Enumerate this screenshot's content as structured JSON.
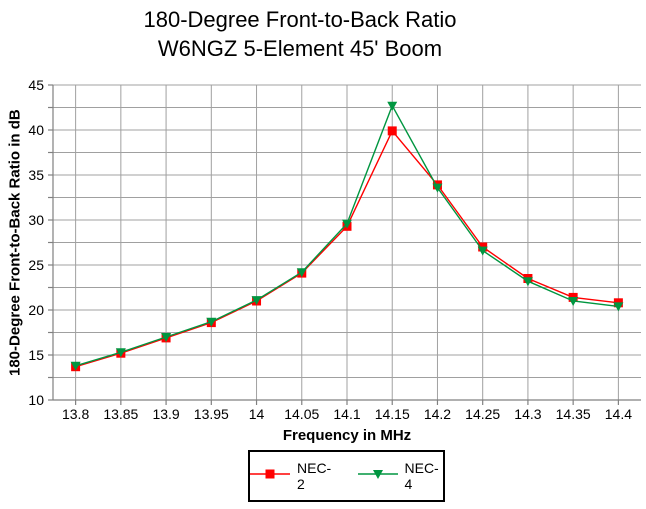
{
  "chart_data": {
    "type": "line",
    "title": "180-Degree Front-to-Back Ratio",
    "subtitle": "W6NGZ 5-Element 45' Boom",
    "xlabel": "Frequency in MHz",
    "ylabel": "180-Degree Front-to-Back Ratio in dB",
    "categories": [
      "13.8",
      "13.85",
      "13.9",
      "13.95",
      "14",
      "14.05",
      "14.1",
      "14.15",
      "14.2",
      "14.25",
      "14.3",
      "14.35",
      "14.4"
    ],
    "series": [
      {
        "name": "NEC-2",
        "marker": "square",
        "color": "#FF0000",
        "values": [
          13.7,
          15.2,
          16.9,
          18.6,
          21.0,
          24.1,
          29.3,
          39.9,
          33.9,
          27.0,
          23.5,
          21.4,
          20.8
        ]
      },
      {
        "name": "NEC-4",
        "marker": "triangle-down",
        "color": "#009640",
        "values": [
          13.8,
          15.3,
          17.0,
          18.7,
          21.1,
          24.2,
          29.6,
          42.7,
          33.6,
          26.6,
          23.2,
          21.0,
          20.4
        ]
      }
    ],
    "ylim": [
      10,
      45
    ],
    "ytick_step": 5,
    "ygrid_step": 2.5,
    "grid": true,
    "legend_position": "bottom-center",
    "colors": {
      "gridline": "#A0A0A0",
      "axis": "#808080",
      "text": "#000000",
      "background": "#FFFFFF"
    }
  }
}
